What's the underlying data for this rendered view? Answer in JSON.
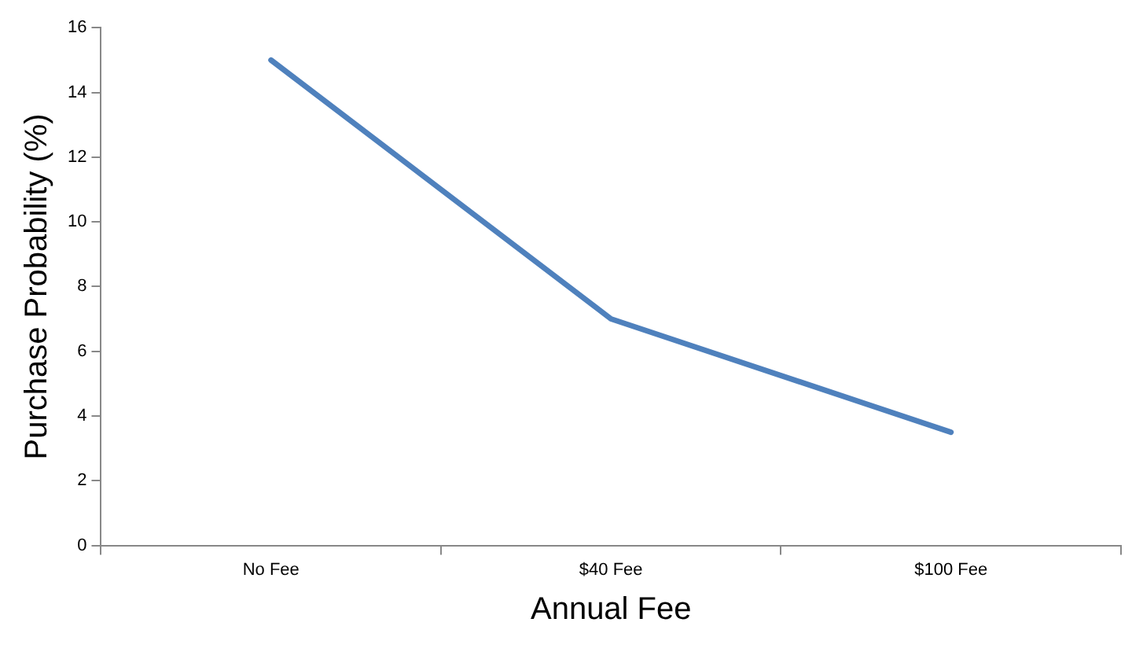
{
  "chart_data": {
    "type": "line",
    "xlabel": "Annual Fee",
    "ylabel": "Purchase Probability (%)",
    "categories": [
      "No Fee",
      "$40 Fee",
      "$100 Fee"
    ],
    "series": [
      {
        "color": "#4f81bd",
        "values": [
          15,
          7,
          3.5
        ]
      }
    ],
    "ylim": [
      0,
      16
    ],
    "yticks": [
      0,
      2,
      4,
      6,
      8,
      10,
      12,
      14,
      16
    ],
    "grid": false,
    "legend": false,
    "marker": "none",
    "line_style": "solid"
  }
}
